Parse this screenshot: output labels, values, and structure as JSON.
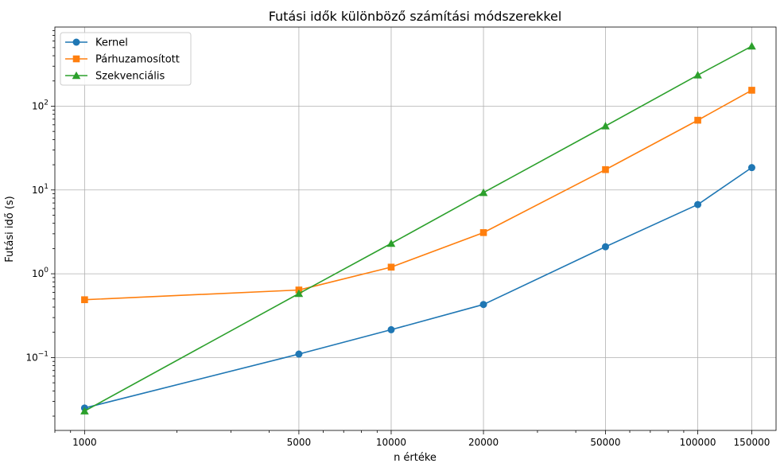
{
  "chart_data": {
    "type": "line",
    "title": "Futási idők különböző számítási módszerekkel",
    "xlabel": "n értéke",
    "ylabel": "Futási idő (s)",
    "x_scale": "log",
    "y_scale": "log",
    "grid": true,
    "legend_position": "top-left",
    "x": [
      1000,
      5000,
      10000,
      20000,
      50000,
      100000,
      150000
    ],
    "x_tick_labels": [
      "1000",
      "5000",
      "10000",
      "20000",
      "50000",
      "100000",
      "150000"
    ],
    "y_ticks": [
      {
        "value": 0.1,
        "base": "10",
        "exp": "−1"
      },
      {
        "value": 1,
        "base": "10",
        "exp": "0"
      },
      {
        "value": 10,
        "base": "10",
        "exp": "1"
      },
      {
        "value": 100,
        "base": "10",
        "exp": "2"
      }
    ],
    "xlim": [
      800,
      180000
    ],
    "ylim": [
      0.0135,
      880
    ],
    "series": [
      {
        "name": "Kernel",
        "color": "#1f77b4",
        "marker": "circle",
        "values": [
          0.025,
          0.11,
          0.215,
          0.43,
          2.1,
          6.7,
          18.5
        ]
      },
      {
        "name": "Párhuzamosított",
        "color": "#ff7f0e",
        "marker": "square",
        "values": [
          0.49,
          0.64,
          1.2,
          3.1,
          17.5,
          68,
          155
        ]
      },
      {
        "name": "Szekvenciális",
        "color": "#2ca02c",
        "marker": "triangle",
        "values": [
          0.023,
          0.58,
          2.3,
          9.3,
          58,
          235,
          520
        ]
      }
    ]
  }
}
